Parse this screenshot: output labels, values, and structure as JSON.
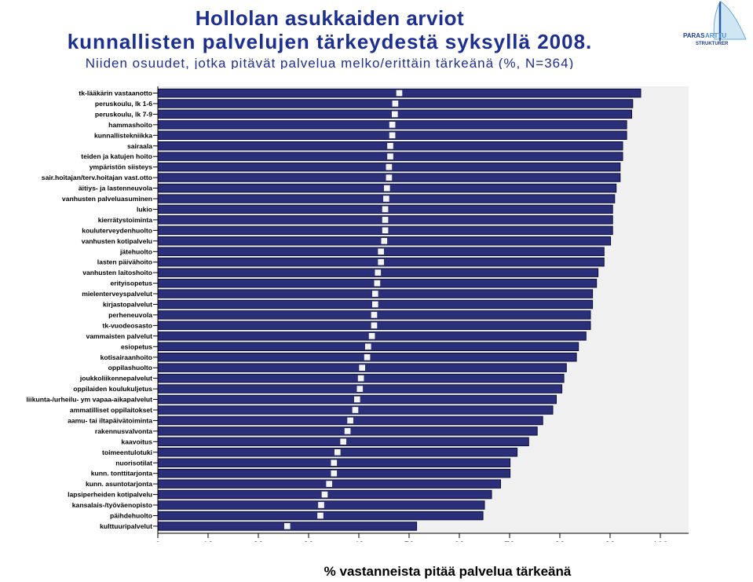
{
  "header": {
    "title_line1": "Hollolan asukkaiden arviot",
    "title_line2": "kunnallisten palvelujen tärkeydestä syksyllä 2008.",
    "subtitle": "Niiden osuudet, jotka pitävät palvelua melko/erittäin tärkeänä (%, N=364)"
  },
  "logo": {
    "line1": "PARAS",
    "line2": "ARTTU",
    "line3": "STRUKTURER"
  },
  "colors": {
    "bar": "#2b2f7a",
    "bar_edge": "#0d0f3a",
    "plot_bg": "#f0f0f0",
    "title": "#1d2f8f"
  },
  "chart_data": {
    "type": "bar",
    "orientation": "horizontal",
    "xlabel": "% vastanneista pitää palvelua tärkeänä",
    "xlim": [
      0,
      100
    ],
    "xticks": [
      0,
      10,
      20,
      30,
      40,
      50,
      60,
      70,
      80,
      90,
      100
    ],
    "grid": false,
    "categories": [
      "tk-lääkärin vastaanotto",
      "peruskoulu, lk 1-6",
      "peruskoulu, lk 7-9",
      "hammashoito",
      "kunnallistekniikka",
      "sairaala",
      "teiden ja katujen hoito",
      "ympäristön siisteys",
      "sair.hoitajan/terv.hoitajan vast.otto",
      "äitiys- ja lastenneuvola",
      "vanhusten palveluasuminen",
      "lukio",
      "kierrätystoiminta",
      "kouluterveydenhuolto",
      "vanhusten kotipalvelu",
      "jätehuolto",
      "lasten päivähoito",
      "vanhusten laitoshoito",
      "erityisopetus",
      "mielenterveyspalvelut",
      "kirjastopalvelut",
      "perheneuvola",
      "tk-vuodeosasto",
      "vammaisten palvelut",
      "esiopetus",
      "kotisairaanhoito",
      "oppilashuolto",
      "joukkoliikennepalvelut",
      "oppilaiden koulukuljetus",
      "liikunta-/urheilu- ym vapaa-aikapalvelut",
      "ammatilliset oppilaitokset",
      "aamu- tai iltapäivätoiminta",
      "rakennusvalvonta",
      "kaavoitus",
      "toimeentulotuki",
      "nuorisotilat",
      "kunn. tonttitarjonta",
      "kunn. asuntotarjonta",
      "lapsiperheiden kotipalvelu",
      "kansalais-/työväenopisto",
      "päihdehuolto",
      "kulttuuripalvelut"
    ],
    "values": [
      96.1,
      94.5,
      94.3,
      93.3,
      93.3,
      92.5,
      92.5,
      92.0,
      92.0,
      91.2,
      90.9,
      90.5,
      90.5,
      90.5,
      90.1,
      88.8,
      88.8,
      87.6,
      87.3,
      86.5,
      86.5,
      86.1,
      86.1,
      85.2,
      83.7,
      83.3,
      81.3,
      80.8,
      80.4,
      79.3,
      78.6,
      76.6,
      75.5,
      73.8,
      71.5,
      70.1,
      70.1,
      68.2,
      66.4,
      65.0,
      64.7,
      51.5
    ]
  }
}
